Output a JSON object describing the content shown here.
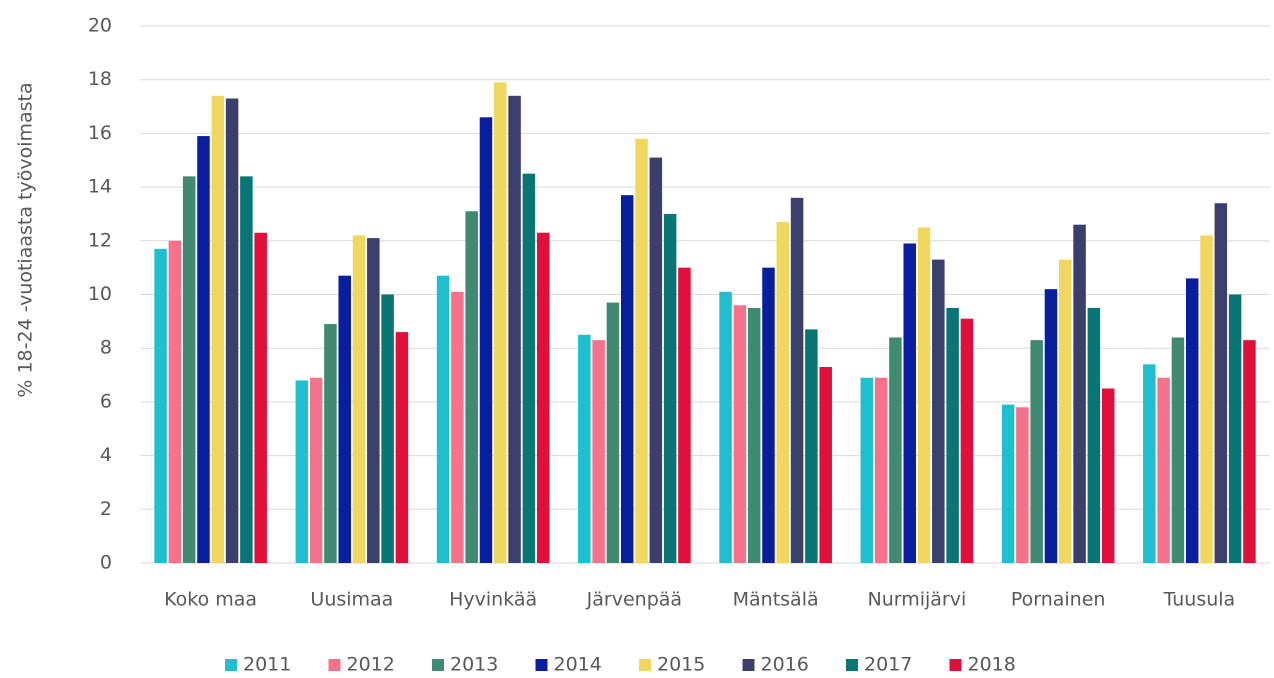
{
  "chart_data": {
    "type": "bar",
    "y_label": "% 18-24 -vuotiaasta työvoimasta",
    "categories": [
      "Koko maa",
      "Uusimaa",
      "Hyvinkää",
      "Järvenpää",
      "Mäntsälä",
      "Nurmijärvi",
      "Pornainen",
      "Tuusula"
    ],
    "series": [
      {
        "name": "2011",
        "color": "#1fbfd0",
        "values": [
          11.7,
          6.8,
          10.7,
          8.5,
          10.1,
          6.9,
          5.9,
          7.4
        ]
      },
      {
        "name": "2012",
        "color": "#f4738a",
        "values": [
          12.0,
          6.9,
          10.1,
          8.3,
          9.6,
          6.9,
          5.8,
          6.9
        ]
      },
      {
        "name": "2013",
        "color": "#3f8a70",
        "values": [
          14.4,
          8.9,
          13.1,
          9.7,
          9.5,
          8.4,
          8.3,
          8.4
        ]
      },
      {
        "name": "2014",
        "color": "#0a1f9e",
        "values": [
          15.9,
          10.7,
          16.6,
          13.7,
          11.0,
          11.9,
          10.2,
          10.6
        ]
      },
      {
        "name": "2015",
        "color": "#f0d860",
        "values": [
          17.4,
          12.2,
          17.9,
          15.8,
          12.7,
          12.5,
          11.3,
          12.2
        ]
      },
      {
        "name": "2016",
        "color": "#3a3f6e",
        "values": [
          17.3,
          12.1,
          17.4,
          15.1,
          13.6,
          11.3,
          12.6,
          13.4
        ]
      },
      {
        "name": "2017",
        "color": "#0a7575",
        "values": [
          14.4,
          10.0,
          14.5,
          13.0,
          8.7,
          9.5,
          9.5,
          10.0
        ]
      },
      {
        "name": "2018",
        "color": "#e0103a",
        "values": [
          12.3,
          8.6,
          12.3,
          11.0,
          7.3,
          9.1,
          6.5,
          8.3
        ]
      }
    ],
    "ylim": [
      0,
      20
    ],
    "yticks": [
      0,
      2,
      4,
      6,
      8,
      10,
      12,
      14,
      16,
      18,
      20
    ],
    "grid": true,
    "legend": "bottom"
  }
}
